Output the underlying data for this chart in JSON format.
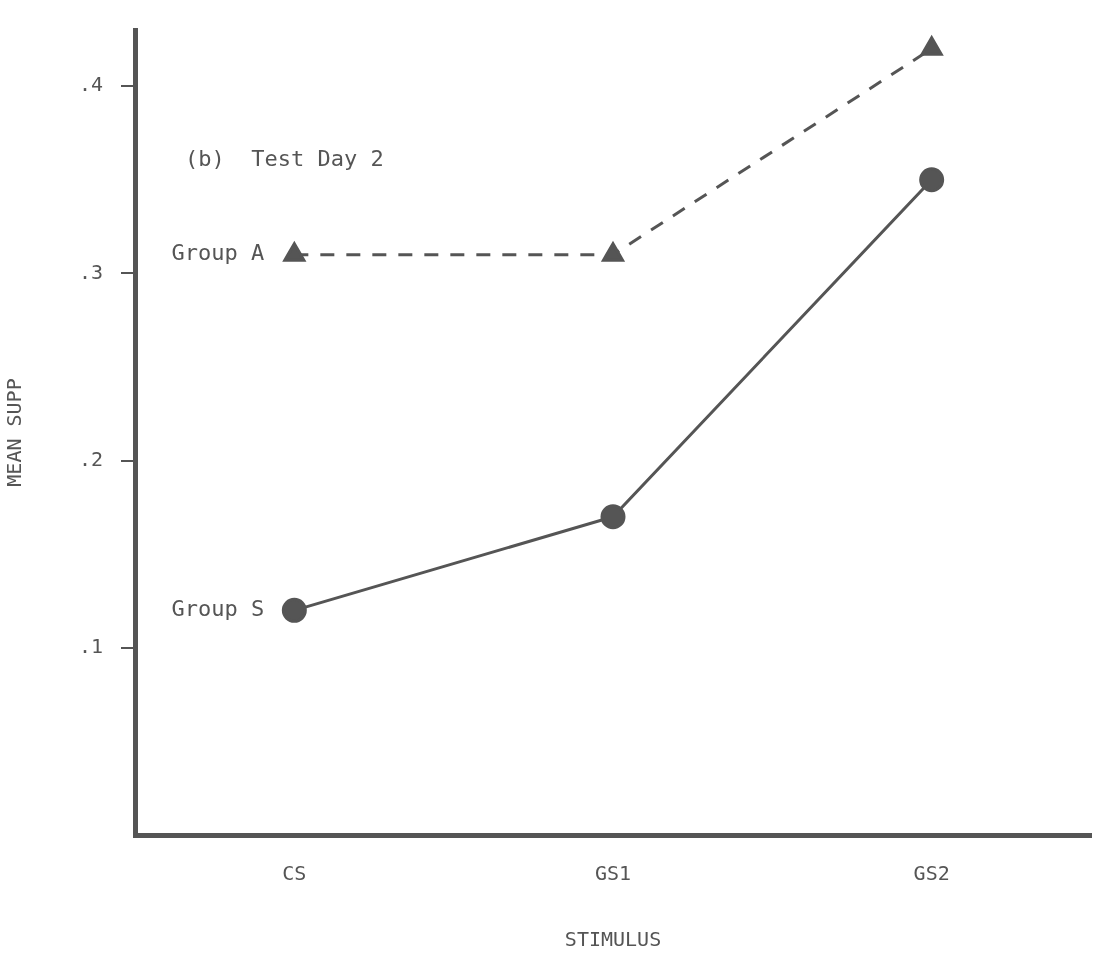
{
  "chart_data": {
    "type": "line",
    "xlabel": "STIMULUS",
    "ylabel": "MEAN SUPP",
    "annotations": [
      "(b)  Test Day 2"
    ],
    "categories": [
      "CS",
      "GS1",
      "GS2"
    ],
    "series": [
      {
        "name": "Group A",
        "color": "#555555",
        "values": [
          0.31,
          0.31,
          0.42
        ],
        "marker": "triangle",
        "line_style": "dashed"
      },
      {
        "name": "Group S",
        "color": "#555555",
        "values": [
          0.12,
          0.17,
          0.35
        ],
        "marker": "circle",
        "line_style": "solid"
      }
    ],
    "ylim": [
      0,
      0.43
    ],
    "yticks": [
      {
        "value": 0.1,
        "label": ".1"
      },
      {
        "value": 0.2,
        "label": ".2"
      },
      {
        "value": 0.3,
        "label": ".3"
      },
      {
        "value": 0.4,
        "label": ".4"
      }
    ],
    "grid": false,
    "legend": false
  }
}
